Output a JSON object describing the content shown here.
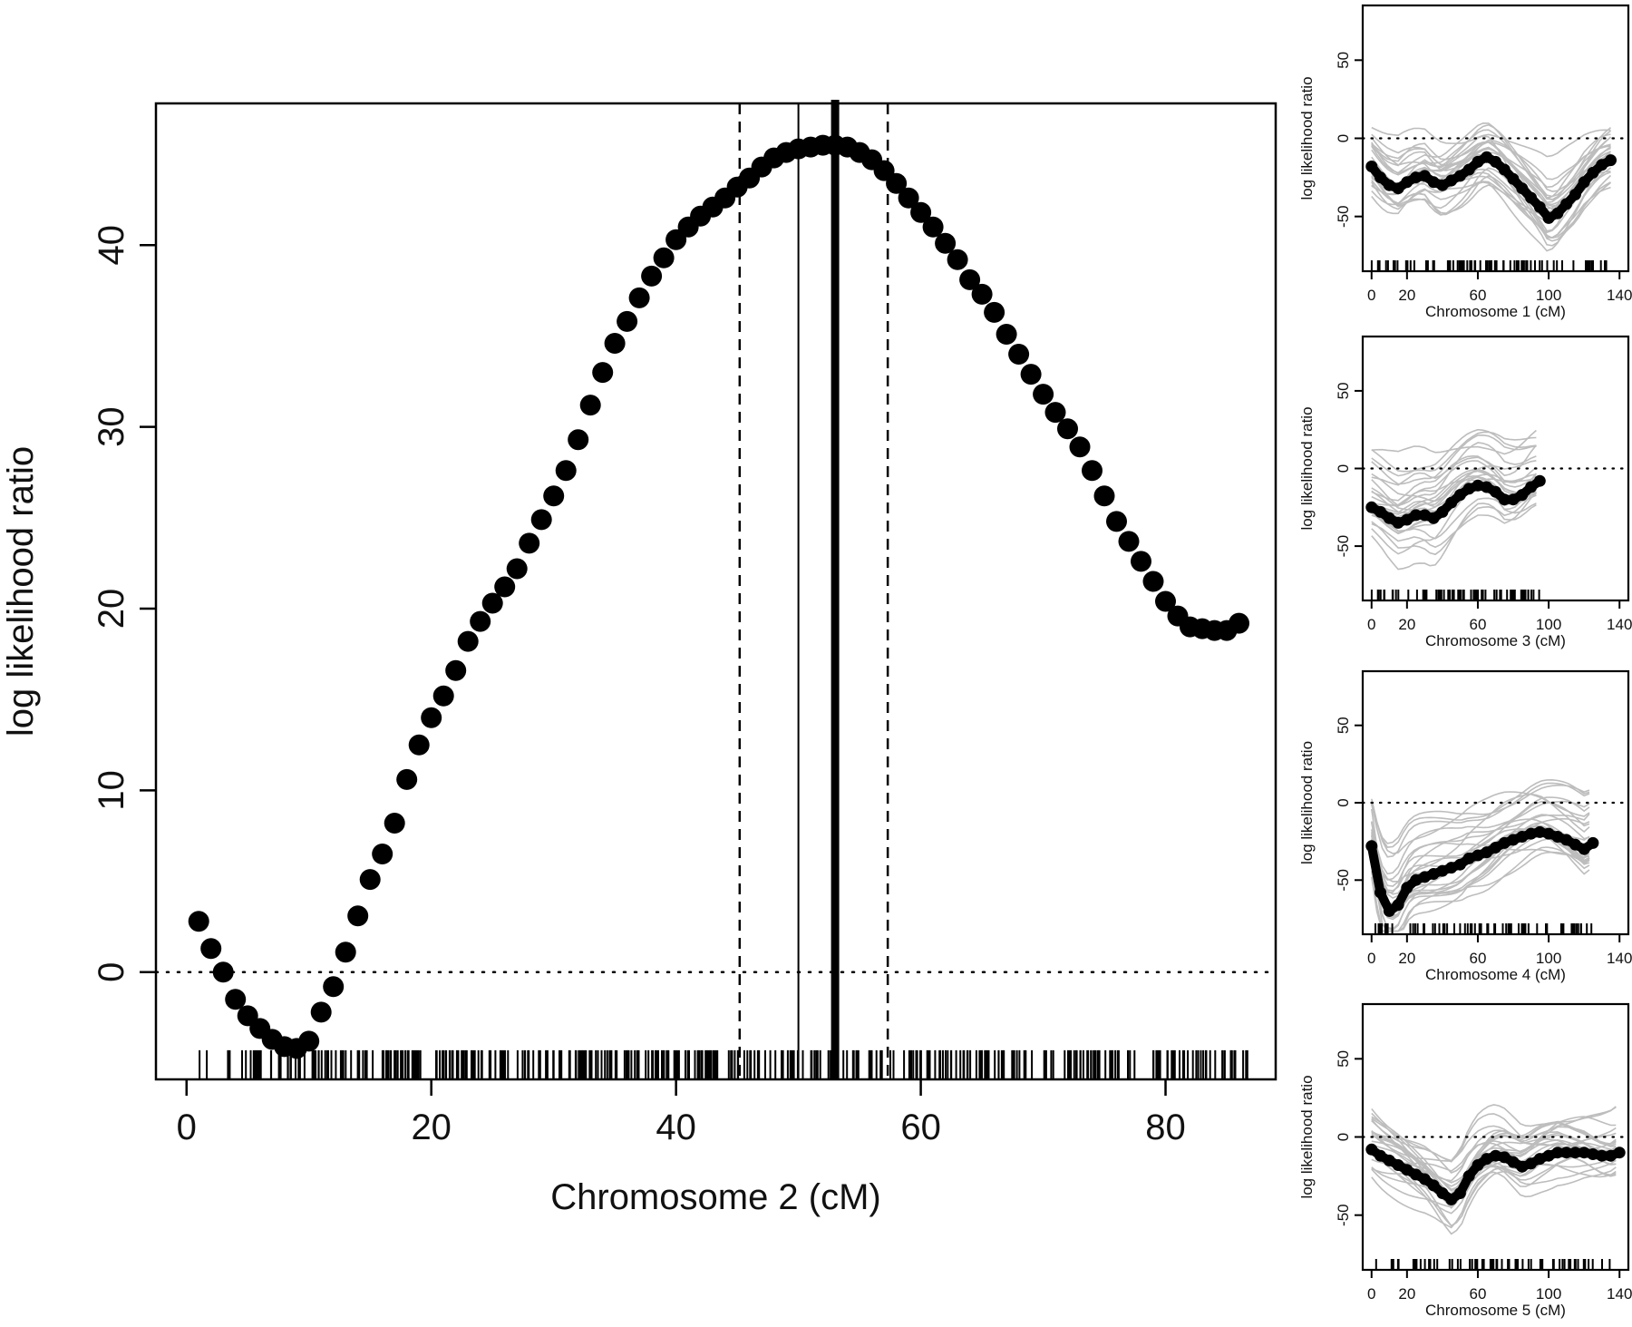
{
  "chart_data": [
    {
      "type": "scatter",
      "xlabel": "Chromosome 2 (cM)",
      "ylabel": "log likelihood ratio",
      "xlim": [
        -2.5,
        89
      ],
      "ylim": [
        -5.9,
        47.8
      ],
      "xticks": [
        0,
        20,
        40,
        60,
        80
      ],
      "yticks": [
        0,
        10,
        20,
        30,
        40
      ],
      "reference_line": 0,
      "vlines_dashed": [
        45.2,
        57.3
      ],
      "vline_thin": 50.0,
      "vline_bold": 53.0,
      "series": [
        {
          "x": [
            1,
            2,
            3,
            4,
            5,
            6,
            7,
            8,
            9,
            10,
            11,
            12,
            13,
            14,
            15,
            16,
            17,
            18,
            19,
            20,
            21,
            22,
            23,
            24,
            25,
            26,
            27,
            28,
            29,
            30,
            31,
            32,
            33,
            34,
            35,
            36,
            37,
            38,
            39,
            40,
            41,
            42,
            43,
            44,
            45,
            46,
            47,
            48,
            49,
            50,
            51,
            52,
            53,
            54,
            55,
            56,
            57,
            58,
            59,
            60,
            61,
            62,
            63,
            64,
            65,
            66,
            67,
            68,
            69,
            70,
            71,
            72,
            73,
            74,
            75,
            76,
            77,
            78,
            79,
            80,
            81,
            82,
            83,
            84,
            85,
            86
          ],
          "values": [
            2.8,
            1.3,
            0.0,
            -1.5,
            -2.4,
            -3.1,
            -3.7,
            -4.1,
            -4.2,
            -3.8,
            -2.2,
            -0.8,
            1.1,
            3.1,
            5.1,
            6.5,
            8.2,
            10.6,
            12.5,
            14.0,
            15.2,
            16.6,
            18.2,
            19.3,
            20.3,
            21.2,
            22.2,
            23.6,
            24.9,
            26.2,
            27.6,
            29.3,
            31.2,
            33.0,
            34.6,
            35.8,
            37.1,
            38.3,
            39.3,
            40.3,
            41.0,
            41.6,
            42.1,
            42.6,
            43.2,
            43.7,
            44.3,
            44.8,
            45.1,
            45.3,
            45.4,
            45.5,
            45.5,
            45.4,
            45.1,
            44.7,
            44.1,
            43.4,
            42.6,
            41.8,
            41.0,
            40.1,
            39.2,
            38.1,
            37.3,
            36.3,
            35.1,
            34.0,
            32.9,
            31.8,
            30.8,
            29.9,
            28.9,
            27.6,
            26.2,
            24.8,
            23.7,
            22.6,
            21.5,
            20.4,
            19.6,
            19.0,
            18.9,
            18.8,
            18.8,
            19.2
          ]
        }
      ]
    },
    {
      "type": "line",
      "xlabel": "Chromosome 1 (cM)",
      "ylabel": "log likelihood ratio",
      "xlim": [
        -5,
        145
      ],
      "ylim": [
        -85,
        85
      ],
      "xticks": [
        0,
        20,
        60,
        100,
        140
      ],
      "yticks": [
        50,
        0,
        -50
      ],
      "reference_line": 0,
      "series": [
        {
          "x": [
            0,
            5,
            10,
            15,
            20,
            25,
            30,
            35,
            40,
            45,
            50,
            55,
            60,
            65,
            70,
            75,
            80,
            85,
            90,
            95,
            100,
            105,
            110,
            115,
            120,
            125,
            130,
            135
          ],
          "values": [
            -18,
            -25,
            -30,
            -32,
            -28,
            -25,
            -24,
            -28,
            -30,
            -27,
            -24,
            -20,
            -15,
            -12,
            -15,
            -20,
            -26,
            -32,
            -38,
            -44,
            -51,
            -48,
            -42,
            -36,
            -28,
            -22,
            -17,
            -14
          ]
        }
      ]
    },
    {
      "type": "line",
      "xlabel": "Chromosome 3 (cM)",
      "ylabel": "log likelihood ratio",
      "xlim": [
        -5,
        145
      ],
      "ylim": [
        -85,
        85
      ],
      "xticks": [
        0,
        20,
        60,
        100,
        140
      ],
      "yticks": [
        50,
        0,
        -50
      ],
      "reference_line": 0,
      "series": [
        {
          "x": [
            0,
            5,
            10,
            15,
            20,
            25,
            30,
            35,
            40,
            45,
            50,
            55,
            60,
            65,
            70,
            75,
            80,
            85,
            90,
            95
          ],
          "values": [
            -25,
            -28,
            -32,
            -35,
            -33,
            -30,
            -30,
            -32,
            -28,
            -22,
            -17,
            -13,
            -11,
            -12,
            -15,
            -20,
            -20,
            -17,
            -12,
            -8
          ]
        }
      ]
    },
    {
      "type": "line",
      "xlabel": "Chromosome 4 (cM)",
      "ylabel": "log likelihood ratio",
      "xlim": [
        -5,
        145
      ],
      "ylim": [
        -85,
        85
      ],
      "xticks": [
        0,
        20,
        60,
        100,
        140
      ],
      "yticks": [
        50,
        0,
        -50
      ],
      "reference_line": 0,
      "series": [
        {
          "x": [
            0,
            5,
            10,
            15,
            20,
            25,
            30,
            35,
            40,
            45,
            50,
            55,
            60,
            65,
            70,
            75,
            80,
            85,
            90,
            95,
            100,
            105,
            110,
            115,
            120,
            125
          ],
          "values": [
            -28,
            -58,
            -70,
            -66,
            -55,
            -50,
            -48,
            -46,
            -44,
            -42,
            -40,
            -36,
            -34,
            -32,
            -29,
            -26,
            -24,
            -22,
            -20,
            -19,
            -20,
            -22,
            -24,
            -27,
            -30,
            -26
          ]
        }
      ]
    },
    {
      "type": "line",
      "xlabel": "Chromosome 5 (cM)",
      "ylabel": "log likelihood ratio",
      "xlim": [
        -5,
        145
      ],
      "ylim": [
        -85,
        85
      ],
      "xticks": [
        0,
        20,
        60,
        100,
        140
      ],
      "yticks": [
        50,
        0,
        -50
      ],
      "reference_line": 0,
      "series": [
        {
          "x": [
            0,
            5,
            10,
            15,
            20,
            25,
            30,
            35,
            40,
            45,
            50,
            55,
            60,
            65,
            70,
            75,
            80,
            85,
            90,
            95,
            100,
            105,
            110,
            115,
            120,
            125,
            130,
            135,
            140
          ],
          "values": [
            -8,
            -12,
            -15,
            -18,
            -21,
            -24,
            -27,
            -31,
            -36,
            -40,
            -36,
            -25,
            -18,
            -14,
            -12,
            -13,
            -16,
            -19,
            -17,
            -14,
            -12,
            -10,
            -10,
            -10,
            -10,
            -11,
            -12,
            -12,
            -10
          ]
        }
      ]
    }
  ]
}
